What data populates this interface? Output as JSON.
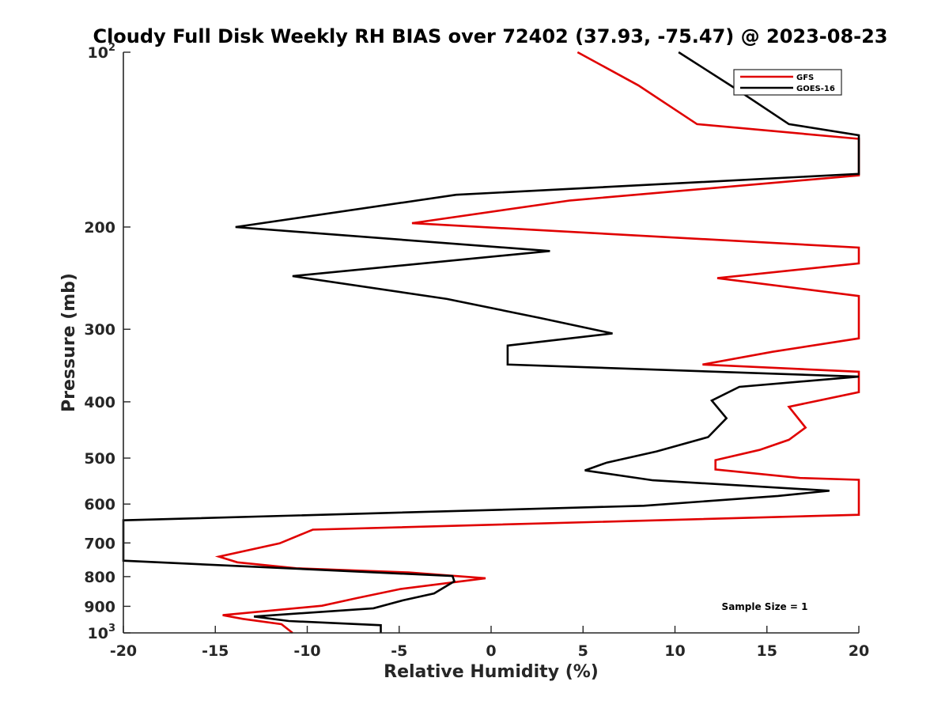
{
  "chart_data": {
    "type": "line",
    "title": "Cloudy Full Disk Weekly RH BIAS over 72402 (37.93, -75.47) @ 2023-08-23",
    "xlabel": "Relative Humidity (%)",
    "ylabel": "Pressure (mb)",
    "xlim": [
      -20,
      20
    ],
    "ylim": [
      100,
      1000
    ],
    "y_scale": "log",
    "y_reversed": true,
    "grid": false,
    "legend_position": "top-right",
    "x_ticks": [
      "-20",
      "-15",
      "-10",
      "-5",
      "0",
      "5",
      "10",
      "15",
      "20"
    ],
    "y_ticks": [
      {
        "value": 100,
        "base": "10",
        "exp": "2"
      },
      {
        "value": 200,
        "label": "200"
      },
      {
        "value": 300,
        "label": "300"
      },
      {
        "value": 400,
        "label": "400"
      },
      {
        "value": 500,
        "label": "500"
      },
      {
        "value": 600,
        "label": "600"
      },
      {
        "value": 700,
        "label": "700"
      },
      {
        "value": 800,
        "label": "800"
      },
      {
        "value": 900,
        "label": "900"
      },
      {
        "value": 1000,
        "base": "10",
        "exp": "3"
      }
    ],
    "annotation": "Sample Size = 1",
    "series": [
      {
        "name": "GFS",
        "color": "#e00000",
        "points": [
          [
            4.7,
            100
          ],
          [
            8,
            114
          ],
          [
            11.2,
            133
          ],
          [
            20,
            141
          ],
          [
            20,
            163
          ],
          [
            4.3,
            180
          ],
          [
            -4.3,
            197
          ],
          [
            20,
            217
          ],
          [
            20,
            231
          ],
          [
            12.3,
            245
          ],
          [
            20,
            263
          ],
          [
            20,
            311
          ],
          [
            15.3,
            328
          ],
          [
            11.5,
            345
          ],
          [
            20,
            355
          ],
          [
            20,
            385
          ],
          [
            16.2,
            408
          ],
          [
            17.1,
            443
          ],
          [
            16.2,
            465
          ],
          [
            14.6,
            484
          ],
          [
            12.2,
            504
          ],
          [
            12.2,
            523
          ],
          [
            16.8,
            541
          ],
          [
            20,
            545
          ],
          [
            20,
            626
          ],
          [
            -9.7,
            664
          ],
          [
            -11.5,
            701
          ],
          [
            -14.8,
            739
          ],
          [
            -13.8,
            756
          ],
          [
            -10.6,
            774
          ],
          [
            -4.5,
            787
          ],
          [
            -0.3,
            805
          ],
          [
            -4.9,
            840
          ],
          [
            -7.3,
            871
          ],
          [
            -9.2,
            898
          ],
          [
            -14.6,
            932
          ],
          [
            -13.5,
            946
          ],
          [
            -11.4,
            966
          ],
          [
            -10.8,
            1000
          ]
        ]
      },
      {
        "name": "GOES-16",
        "color": "#000000",
        "points": [
          [
            10.2,
            100
          ],
          [
            13.2,
            115
          ],
          [
            16.2,
            133
          ],
          [
            20,
            139
          ],
          [
            20,
            162
          ],
          [
            -1.9,
            176
          ],
          [
            -13.9,
            200
          ],
          [
            3.2,
            220
          ],
          [
            -10.8,
            243
          ],
          [
            -2.4,
            266
          ],
          [
            2.7,
            287
          ],
          [
            6.6,
            305
          ],
          [
            0.9,
            320
          ],
          [
            0.9,
            345
          ],
          [
            20,
            362
          ],
          [
            13.5,
            377
          ],
          [
            12,
            398
          ],
          [
            12.8,
            427
          ],
          [
            11.8,
            460
          ],
          [
            9,
            487
          ],
          [
            6.3,
            509
          ],
          [
            5.1,
            525
          ],
          [
            8.8,
            546
          ],
          [
            18.4,
            569
          ],
          [
            15.6,
            581
          ],
          [
            8.3,
            604
          ],
          [
            -20,
            640
          ],
          [
            -20,
            751
          ],
          [
            -2.1,
            798
          ],
          [
            -2,
            815
          ],
          [
            -3.1,
            855
          ],
          [
            -4.8,
            879
          ],
          [
            -6.4,
            907
          ],
          [
            -12.9,
            937
          ],
          [
            -11,
            954
          ],
          [
            -6,
            970
          ],
          [
            -6,
            1000
          ]
        ]
      }
    ]
  }
}
